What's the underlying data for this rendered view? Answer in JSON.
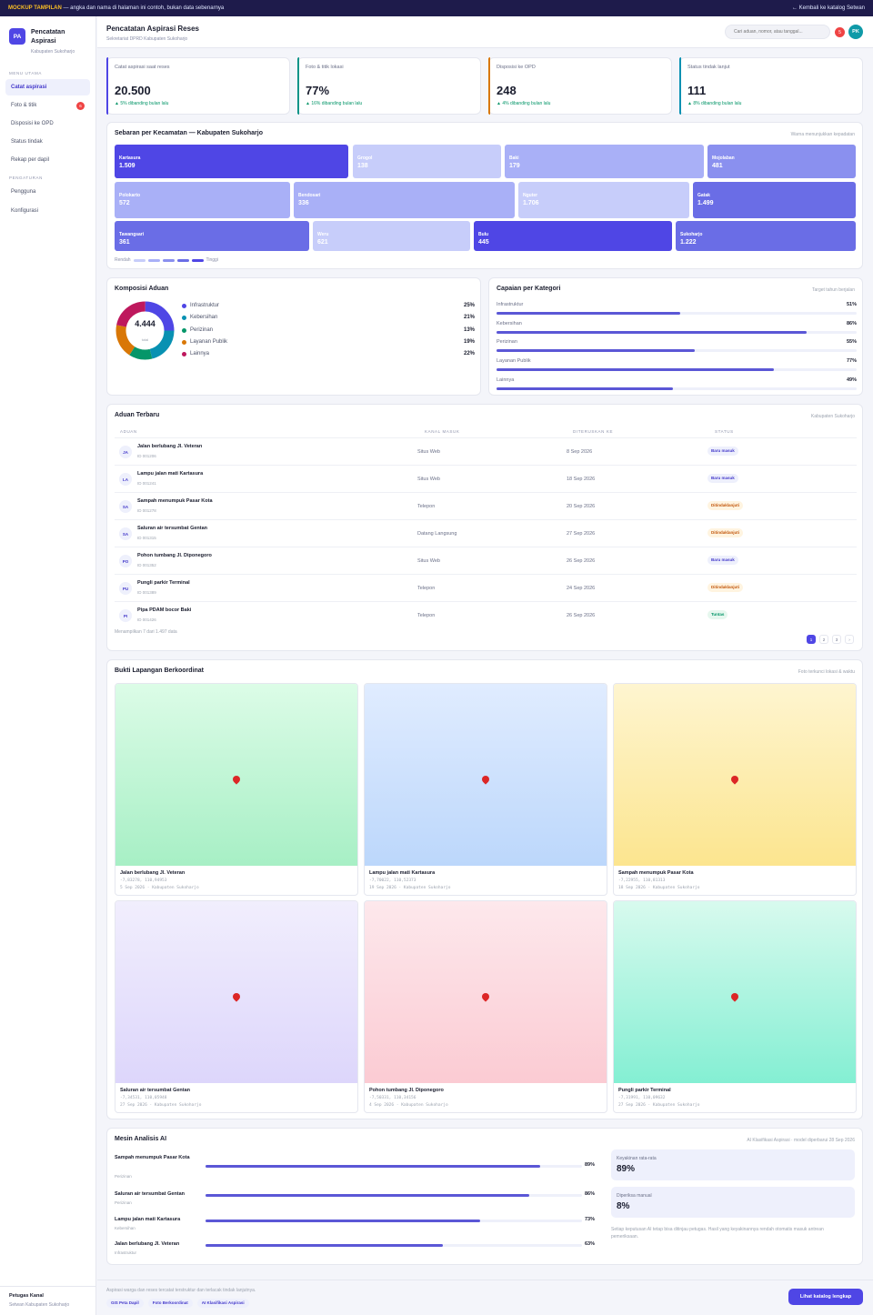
{
  "banner": {
    "tag": "MOCKUP TAMPILAN",
    "text": " — angka dan nama di halaman ini contoh, bukan data sebenarnya",
    "back": "← Kembali ke katalog Setwan"
  },
  "brand": {
    "initials": "PA",
    "title": "Pencatatan Aspirasi",
    "sub": "Kabupaten Sukoharjo"
  },
  "sidebar": {
    "section_main": "MENU UTAMA",
    "items": [
      {
        "label": "Catat aspirasi"
      },
      {
        "label": "Foto & titik",
        "badge": "6"
      },
      {
        "label": "Disposisi ke OPD"
      },
      {
        "label": "Status tindak"
      },
      {
        "label": "Rekap per dapil"
      }
    ],
    "section_settings": "PENGATURAN",
    "settings": [
      {
        "label": "Pengguna"
      },
      {
        "label": "Konfigurasi"
      }
    ],
    "footer_name": "Petugas Kanal",
    "footer_role": "Setwan Kabupaten Sukoharjo"
  },
  "header": {
    "title": "Pencatatan Aspirasi Reses",
    "sub": "Sekretariat DPRD Kabupaten Sukoharjo",
    "search_placeholder": "Cari aduan, nomor, atau tanggal...",
    "notif_count": "5",
    "user_initials": "PK"
  },
  "stats": [
    {
      "label": "Catat aspirasi saat reses",
      "value": "20.500",
      "delta": "▲ 5% dibanding bulan lalu",
      "color": "#4f46e5"
    },
    {
      "label": "Foto & titik lokasi",
      "value": "77%",
      "delta": "▲ 16% dibanding bulan lalu",
      "color": "#0d9488"
    },
    {
      "label": "Disposisi ke OPD",
      "value": "248",
      "delta": "▲ 4% dibanding bulan lalu",
      "color": "#d97706"
    },
    {
      "label": "Status tindak lanjut",
      "value": "111",
      "delta": "▲ 8% dibanding bulan lalu",
      "color": "#0891b2"
    }
  ],
  "treemap": {
    "title": "Sebaran per Kecamatan — Kabupaten Sukoharjo",
    "note": "Warna menunjukkan kepadatan",
    "legend_low": "Rendah",
    "legend_high": "Tinggi",
    "scale": [
      "#c7cdfa",
      "#a9b0f7",
      "#8a90ef",
      "#6a6de6",
      "#4f46e5"
    ],
    "tiles": [
      {
        "name": "Kartasura",
        "value": "1.509",
        "level": 4
      },
      {
        "name": "Grogol",
        "value": "138",
        "level": 0
      },
      {
        "name": "Baki",
        "value": "179",
        "level": 1
      },
      {
        "name": "Mojolaban",
        "value": "481",
        "level": 2
      },
      {
        "name": "Polokarto",
        "value": "572",
        "level": 1
      },
      {
        "name": "Bendosari",
        "value": "336",
        "level": 1
      },
      {
        "name": "Nguter",
        "value": "1.706",
        "level": 0
      },
      {
        "name": "Gatak",
        "value": "1.499",
        "level": 3
      },
      {
        "name": "Tawangsari",
        "value": "361",
        "level": 3
      },
      {
        "name": "Weru",
        "value": "621",
        "level": 0
      },
      {
        "name": "Bulu",
        "value": "445",
        "level": 4
      },
      {
        "name": "Sukoharjo",
        "value": "1.222",
        "level": 3
      }
    ]
  },
  "komposisi": {
    "title": "Komposisi Aduan",
    "total": "4.444",
    "total_label": "total",
    "items": [
      {
        "label": "Infrastruktur",
        "pct": "25%",
        "value": 25,
        "color": "#4f46e5"
      },
      {
        "label": "Kebersihan",
        "pct": "21%",
        "value": 21,
        "color": "#0891b2"
      },
      {
        "label": "Perizinan",
        "pct": "13%",
        "value": 13,
        "color": "#059669"
      },
      {
        "label": "Layanan Publik",
        "pct": "19%",
        "value": 19,
        "color": "#d97706"
      },
      {
        "label": "Lainnya",
        "pct": "22%",
        "value": 22,
        "color": "#be185d"
      }
    ]
  },
  "capaian": {
    "title": "Capaian per Kategori",
    "note": "Target tahun berjalan",
    "items": [
      {
        "label": "Infrastruktur",
        "pct": "51%",
        "value": 51
      },
      {
        "label": "Kebersihan",
        "pct": "86%",
        "value": 86
      },
      {
        "label": "Perizinan",
        "pct": "55%",
        "value": 55
      },
      {
        "label": "Layanan Publik",
        "pct": "77%",
        "value": 77
      },
      {
        "label": "Lainnya",
        "pct": "49%",
        "value": 49
      }
    ]
  },
  "aduan": {
    "title": "Aduan Terbaru",
    "note": "Kabupaten Sukoharjo",
    "columns": [
      "ADUAN",
      "KANAL MASUK",
      "DITERUSKAN KE",
      "STATUS"
    ],
    "rows": [
      {
        "initials": "JA",
        "title": "Jalan berlubang Jl. Veteran",
        "id": "ID 001206",
        "channel": "Situs Web",
        "date": "8 Sep 2026",
        "status": "Baru masuk",
        "status_type": "baru"
      },
      {
        "initials": "LA",
        "title": "Lampu jalan mati Kartasura",
        "id": "ID 001241",
        "channel": "Situs Web",
        "date": "18 Sep 2026",
        "status": "Baru masuk",
        "status_type": "baru"
      },
      {
        "initials": "SA",
        "title": "Sampah menumpuk Pasar Kota",
        "id": "ID 001278",
        "channel": "Telepon",
        "date": "20 Sep 2026",
        "status": "Ditindaklanjuti",
        "status_type": "tindak"
      },
      {
        "initials": "SA",
        "title": "Saluran air tersumbat Gentan",
        "id": "ID 001315",
        "channel": "Datang Langsung",
        "date": "27 Sep 2026",
        "status": "Ditindaklanjuti",
        "status_type": "tindak"
      },
      {
        "initials": "PO",
        "title": "Pohon tumbang Jl. Diponegoro",
        "id": "ID 001352",
        "channel": "Situs Web",
        "date": "26 Sep 2026",
        "status": "Baru masuk",
        "status_type": "baru"
      },
      {
        "initials": "PU",
        "title": "Pungli parkir Terminal",
        "id": "ID 001389",
        "channel": "Telepon",
        "date": "24 Sep 2026",
        "status": "Ditindaklanjuti",
        "status_type": "tindak"
      },
      {
        "initials": "PI",
        "title": "Pipa PDAM bocor Baki",
        "id": "ID 001426",
        "channel": "Telepon",
        "date": "26 Sep 2026",
        "status": "Tuntas",
        "status_type": "tuntas"
      }
    ],
    "footer": "Menampilkan 7 dari 1.497 data",
    "pages": [
      "1",
      "2",
      "3",
      "›"
    ]
  },
  "bukti": {
    "title": "Bukti Lapangan Berkoordinat",
    "note": "Foto terkunci lokasi & waktu",
    "items": [
      {
        "title": "Jalan berlubang Jl. Veteran",
        "coord": "-7,83278, 110,94953",
        "meta": "5 Sep 2026 · Kabupaten Sukoharjo",
        "c1": "#dcfce7",
        "c2": "#a7efc5"
      },
      {
        "title": "Lampu jalan mati Kartasura",
        "coord": "-7,70022, 110,52373",
        "meta": "19 Sep 2026 · Kabupaten Sukoharjo",
        "c1": "#e0ecff",
        "c2": "#bcd7fb"
      },
      {
        "title": "Sampah menumpuk Pasar Kota",
        "coord": "-7,22955, 110,81313",
        "meta": "18 Sep 2026 · Kabupaten Sukoharjo",
        "c1": "#fef5d0",
        "c2": "#fce58f"
      },
      {
        "title": "Saluran air tersumbat Gentan",
        "coord": "-7,34531, 110,05948",
        "meta": "27 Sep 2026 · Kabupaten Sukoharjo",
        "c1": "#f1eefd",
        "c2": "#ddd6fb"
      },
      {
        "title": "Pohon tumbang Jl. Diponegoro",
        "coord": "-7,50331, 110,34156",
        "meta": "4 Sep 2026 · Kabupaten Sukoharjo",
        "c1": "#fde8ec",
        "c2": "#fbcbd3"
      },
      {
        "title": "Pungli parkir Terminal",
        "coord": "-7,31991, 110,09632",
        "meta": "27 Sep 2026 · Kabupaten Sukoharjo",
        "c1": "#d8faee",
        "c2": "#84efd3"
      }
    ]
  },
  "ai": {
    "title": "Mesin Analisis AI",
    "note": "AI Klasifikasi Aspirasi · model diperbarui 28 Sep 2026",
    "items": [
      {
        "title": "Sampah menumpuk Pasar Kota",
        "cat": "Perizinan",
        "pct": "89%",
        "value": 89
      },
      {
        "title": "Saluran air tersumbat Gentan",
        "cat": "Perizinan",
        "pct": "86%",
        "value": 86
      },
      {
        "title": "Lampu jalan mati Kartasura",
        "cat": "Kebersihan",
        "pct": "73%",
        "value": 73
      },
      {
        "title": "Jalan berlubang Jl. Veteran",
        "cat": "Infrastruktur",
        "pct": "63%",
        "value": 63
      }
    ],
    "metrics": [
      {
        "label": "Keyakinan rata-rata",
        "value": "89%"
      },
      {
        "label": "Diperiksa manual",
        "value": "8%"
      }
    ],
    "disclaimer": "Setiap keputusan AI tetap bisa ditinjau petugas. Hasil yang keyakinannya rendah otomatis masuk antrean pemeriksaan."
  },
  "footer": {
    "text": "Aspirasi warga dan reses tercatat terstruktur dan terlacak tindak lanjutnya.",
    "chips": [
      "GIS Peta Dapil",
      "Foto Berkoordinat",
      "AI Klasifikasi Aspirasi"
    ],
    "button": "Lihat katalog lengkap"
  }
}
